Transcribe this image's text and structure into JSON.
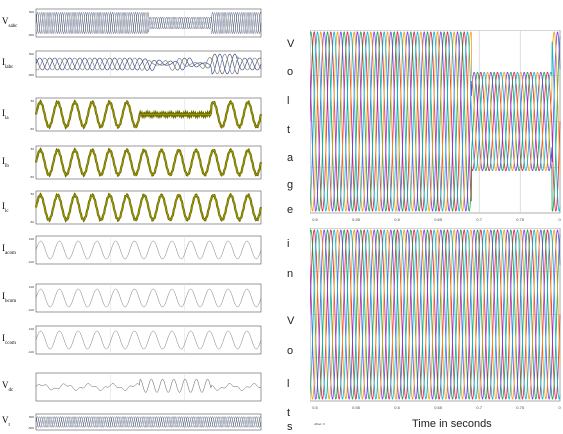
{
  "left_panel": {
    "strips": [
      {
        "id": "vabc",
        "label": "V",
        "sub": "sabc",
        "type": "three",
        "amps": [
          0.85,
          0.85,
          0.85
        ],
        "segments": [
          [
            0,
            1,
            0.85
          ],
          [
            0.5,
            1,
            0.45
          ],
          [
            0.78,
            1,
            0.85
          ]
        ],
        "ytick_top": "500",
        "ytick_bot": "-500",
        "color": [
          "#1e3a8a",
          "#333",
          "#1e3a8a"
        ]
      },
      {
        "id": "iabc",
        "label": "I",
        "sub": "labc",
        "type": "three-distorted",
        "ytick_top": "500",
        "ytick_bot": "-500"
      },
      {
        "id": "ia",
        "label": "I",
        "sub": "la",
        "type": "single-thick",
        "gap": [
          0.46,
          0.78
        ],
        "ytick_top": "50",
        "ytick_bot": "-50"
      },
      {
        "id": "ib",
        "label": "I",
        "sub": "lb",
        "type": "single-thick",
        "gap": null,
        "ytick_top": "50",
        "ytick_bot": "-50"
      },
      {
        "id": "ic",
        "label": "I",
        "sub": "lc",
        "type": "single-thick",
        "gap": null,
        "ytick_top": "50",
        "ytick_bot": "-50"
      },
      {
        "id": "iacom",
        "label": "I",
        "sub": "acom",
        "type": "single-thin",
        "ytick_top": "100",
        "ytick_bot": "-100"
      },
      {
        "id": "ibcom",
        "label": "I",
        "sub": "bcom",
        "type": "single-thin",
        "ytick_top": "100",
        "ytick_bot": "-100"
      },
      {
        "id": "iccom",
        "label": "I",
        "sub": "ccom",
        "type": "single-thin",
        "ytick_top": "100",
        "ytick_bot": "-100"
      },
      {
        "id": "vdc",
        "label": "V",
        "sub": "dc",
        "type": "dc",
        "ytick_top": "",
        "ytick_bot": ""
      },
      {
        "id": "vt",
        "label": "V",
        "sub": "t",
        "type": "three",
        "ytick_top": "500",
        "ytick_bot": "-500"
      }
    ]
  },
  "right_panel": {
    "vertical_text": [
      "V",
      "o",
      "l",
      "t",
      "a",
      "g",
      "e",
      "i",
      "n",
      "V",
      "o",
      "l",
      "t",
      "s"
    ],
    "xlabel": "Time in seconds",
    "offset_note": "offset: 0",
    "top_scope": {
      "xticks": [
        "0.5",
        "0.55",
        "0.6",
        "0.65",
        "0.7",
        "0.75",
        "0.8"
      ],
      "sag_start": 0.7,
      "sag_end": 0.8,
      "normal_amp": 1.0,
      "sag_amp": 0.55
    },
    "bottom_scope": {
      "xticks": [
        "0.5",
        "0.55",
        "0.6",
        "0.65",
        "0.7",
        "0.75",
        "0.8"
      ]
    },
    "colors": {
      "phase_a": "#e11d48",
      "phase_b": "#16a34a",
      "phase_c": "#7c3aed",
      "phase_d": "#f59e0b",
      "phase_e": "#06b6d4",
      "grid": "#c8c8c8"
    }
  },
  "chart_data": [
    {
      "type": "line",
      "title": "",
      "xlabel": "",
      "ylabel": "",
      "series": [
        {
          "name": "V_sabc",
          "values": []
        },
        {
          "name": "I_labc",
          "values": []
        },
        {
          "name": "I_la",
          "values": []
        },
        {
          "name": "I_lb",
          "values": []
        },
        {
          "name": "I_lc",
          "values": []
        },
        {
          "name": "I_acom",
          "values": []
        },
        {
          "name": "I_bcom",
          "values": []
        },
        {
          "name": "I_ccom",
          "values": []
        },
        {
          "name": "V_dc",
          "values": []
        },
        {
          "name": "V_t",
          "values": []
        }
      ]
    },
    {
      "type": "line",
      "title": "",
      "xlabel": "",
      "ylabel": "Voltage",
      "x_ticks": [
        "0.5",
        "0.55",
        "0.6",
        "0.65",
        "0.7",
        "0.75",
        "0.8"
      ],
      "xlim": [
        0.5,
        0.8
      ],
      "sag_interval": [
        0.7,
        0.8
      ],
      "normal_amplitude_fraction": 1.0,
      "sag_amplitude_fraction": 0.55
    },
    {
      "type": "line",
      "title": "",
      "xlabel": "Time in seconds",
      "ylabel": "Volts",
      "x_ticks": [
        "0.5",
        "0.55",
        "0.6",
        "0.65",
        "0.7",
        "0.75",
        "0.8"
      ],
      "xlim": [
        0.5,
        0.8
      ]
    }
  ]
}
